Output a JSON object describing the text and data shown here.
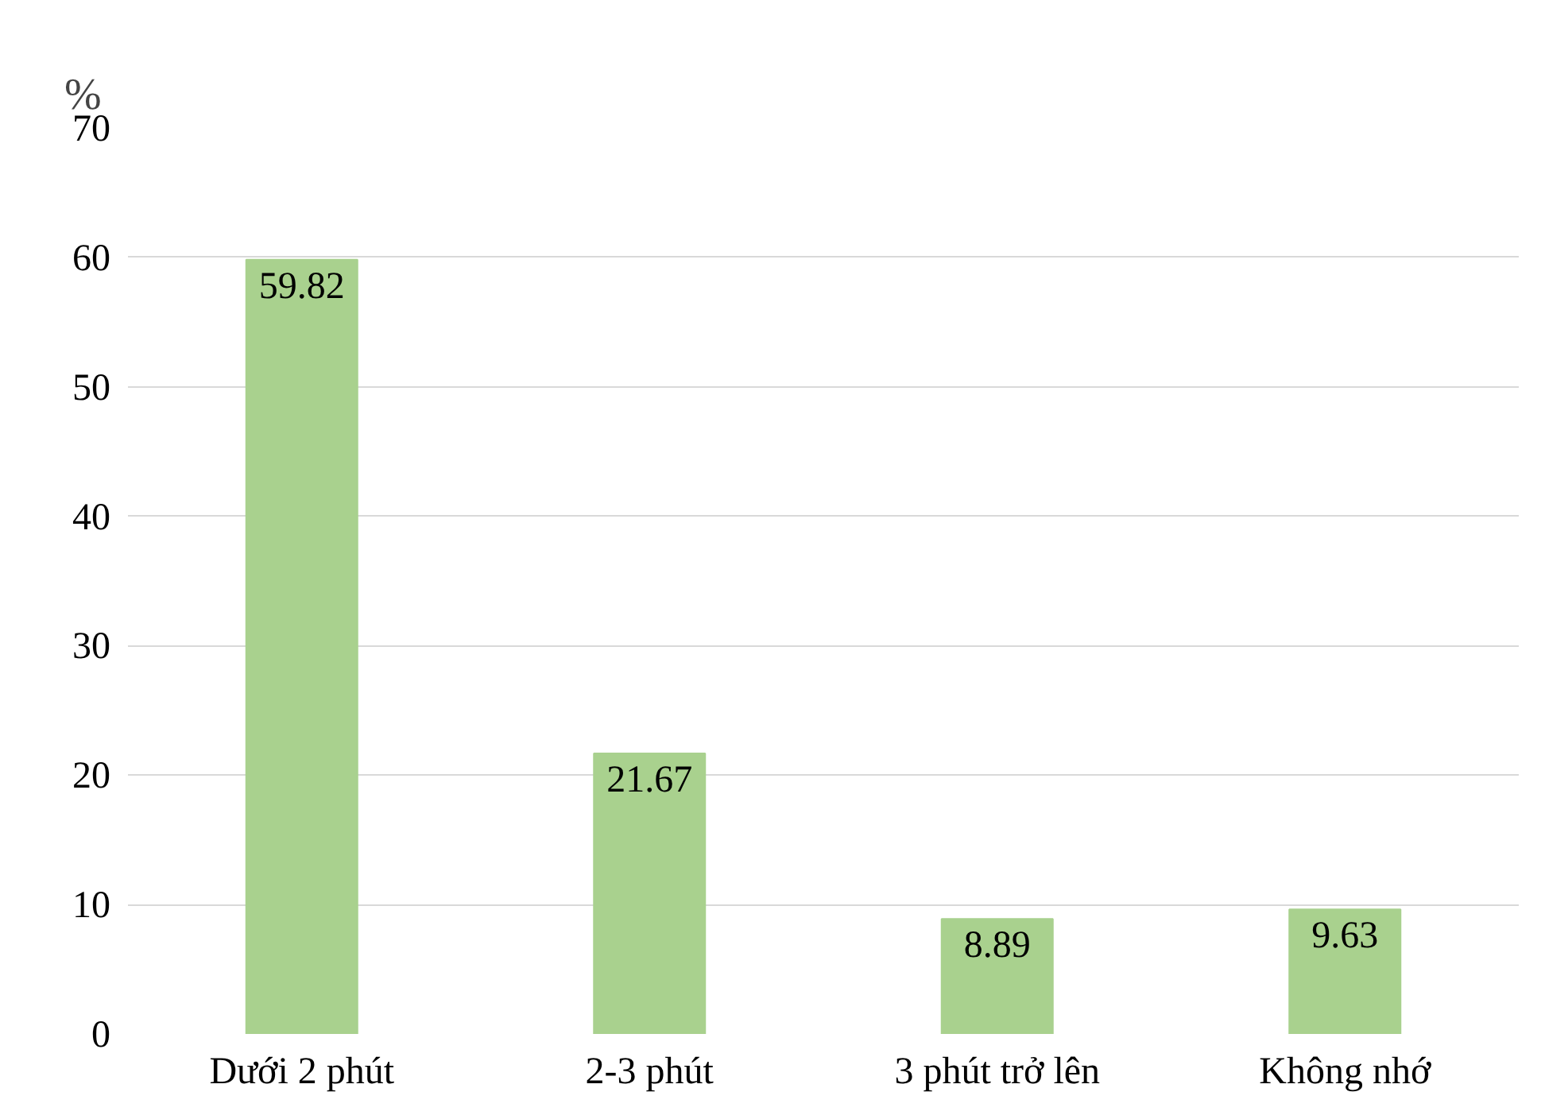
{
  "chart_data": {
    "type": "bar",
    "ylabel": "%",
    "categories": [
      "Dưới 2 phút",
      "2-3 phút",
      "3 phút trở lên",
      "Không nhớ"
    ],
    "values": [
      59.82,
      21.67,
      8.89,
      9.63
    ],
    "color": "#a9d18e",
    "ylim": [
      0,
      70
    ],
    "yticks": [
      0,
      10,
      20,
      30,
      40,
      50,
      60,
      70
    ],
    "grid": "y",
    "data_labels": true
  }
}
